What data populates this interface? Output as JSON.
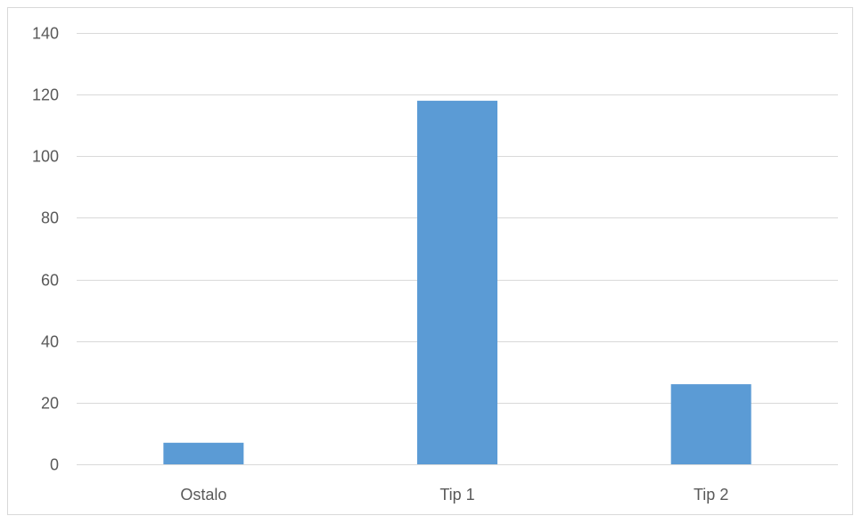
{
  "chart_data": {
    "type": "bar",
    "categories": [
      "Ostalo",
      "Tip 1",
      "Tip 2"
    ],
    "series": [
      {
        "values": [
          7,
          118,
          26
        ]
      }
    ],
    "ylim": [
      0,
      140
    ],
    "yticks": [
      "0",
      "20",
      "40",
      "60",
      "80",
      "100",
      "120",
      "140"
    ],
    "ytick_values": [
      0,
      20,
      40,
      60,
      80,
      100,
      120,
      140
    ],
    "grid": true,
    "legend": "none",
    "bar_color": "#5b9bd5"
  }
}
